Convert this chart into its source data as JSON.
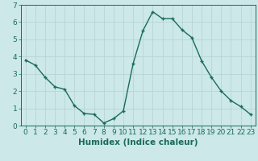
{
  "x": [
    0,
    1,
    2,
    3,
    4,
    5,
    6,
    7,
    8,
    9,
    10,
    11,
    12,
    13,
    14,
    15,
    16,
    17,
    18,
    19,
    20,
    21,
    22,
    23
  ],
  "y": [
    3.8,
    3.5,
    2.8,
    2.25,
    2.1,
    1.15,
    0.7,
    0.65,
    0.15,
    0.4,
    0.85,
    3.6,
    5.5,
    6.6,
    6.2,
    6.2,
    5.55,
    5.1,
    3.75,
    2.8,
    2.0,
    1.45,
    1.1,
    0.65
  ],
  "xlabel": "Humidex (Indice chaleur)",
  "ylim": [
    0,
    7
  ],
  "xlim_left": -0.5,
  "xlim_right": 23.5,
  "bg_color": "#cce8e8",
  "grid_color": "#b8d4d4",
  "line_color": "#1a6b5a",
  "marker_color": "#1a6b5a",
  "tick_label_color": "#1a6b5a",
  "xlabel_color": "#1a6b5a",
  "xlabel_fontsize": 7.5,
  "tick_fontsize": 6.5
}
